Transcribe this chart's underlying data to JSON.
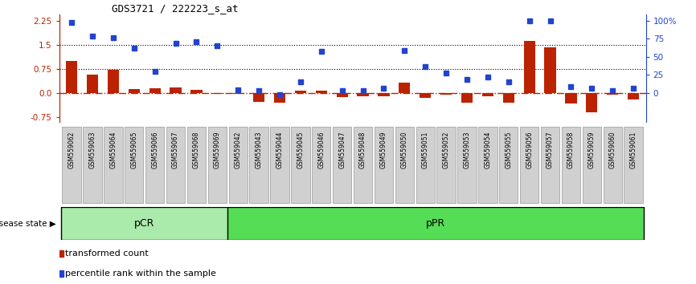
{
  "title": "GDS3721 / 222223_s_at",
  "samples": [
    "GSM559062",
    "GSM559063",
    "GSM559064",
    "GSM559065",
    "GSM559066",
    "GSM559067",
    "GSM559068",
    "GSM559069",
    "GSM559042",
    "GSM559043",
    "GSM559044",
    "GSM559045",
    "GSM559046",
    "GSM559047",
    "GSM559048",
    "GSM559049",
    "GSM559050",
    "GSM559051",
    "GSM559052",
    "GSM559053",
    "GSM559054",
    "GSM559055",
    "GSM559056",
    "GSM559057",
    "GSM559058",
    "GSM559059",
    "GSM559060",
    "GSM559061"
  ],
  "transformed_count": [
    1.0,
    0.58,
    0.72,
    0.12,
    0.15,
    0.18,
    0.1,
    -0.02,
    -0.02,
    -0.28,
    -0.3,
    0.07,
    0.07,
    -0.12,
    -0.1,
    -0.09,
    0.33,
    -0.14,
    -0.06,
    -0.3,
    -0.1,
    -0.3,
    1.62,
    1.42,
    -0.33,
    -0.6,
    -0.05,
    -0.2
  ],
  "percentile_rank_left": [
    2.2,
    1.78,
    1.72,
    1.4,
    0.68,
    1.55,
    1.6,
    1.47,
    0.1,
    0.07,
    -0.05,
    0.35,
    1.3,
    0.08,
    0.07,
    0.15,
    1.32,
    0.82,
    0.62,
    0.43,
    0.5,
    0.35,
    2.25,
    2.25,
    0.2,
    0.15,
    0.08,
    0.15
  ],
  "pCR_count": 8,
  "bar_color": "#bb2200",
  "dot_color": "#2244cc",
  "ylim": [
    -0.9,
    2.45
  ],
  "yticks_left": [
    -0.75,
    0.0,
    0.75,
    1.5,
    2.25
  ],
  "yticks_right": [
    0,
    25,
    50,
    75,
    100
  ],
  "hline1": 0.75,
  "hline2": 1.5,
  "pCR_color": "#aaeaaa",
  "pPR_color": "#55dd55",
  "disease_state_label": "disease state",
  "pCR_label": "pCR",
  "pPR_label": "pPR",
  "legend_bar": "transformed count",
  "legend_dot": "percentile rank within the sample"
}
